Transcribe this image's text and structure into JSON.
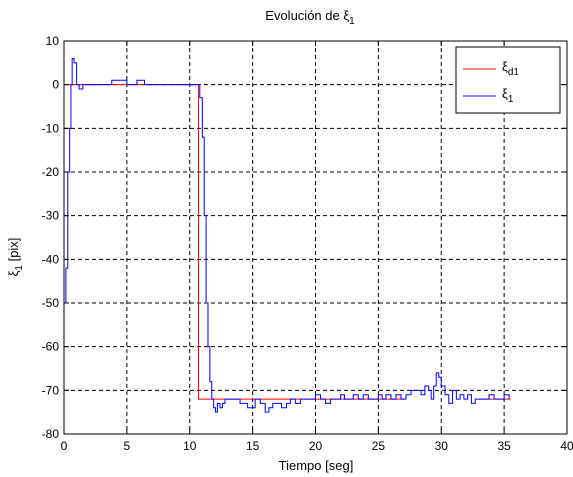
{
  "chart_data": {
    "type": "line",
    "title": {
      "text": "Evolución de ξ",
      "sub": "1"
    },
    "xlabel": "Tiempo [seg]",
    "ylabel": {
      "text": "ξ",
      "sub": "1",
      "suffix": " [pix]"
    },
    "xlim": [
      0,
      40
    ],
    "ylim": [
      -80,
      10
    ],
    "xticks": [
      0,
      5,
      10,
      15,
      20,
      25,
      30,
      35,
      40
    ],
    "yticks": [
      10,
      0,
      -10,
      -20,
      -30,
      -40,
      -50,
      -60,
      -70,
      -80
    ],
    "grid": true,
    "legend_position": "top-right",
    "series": [
      {
        "name": "ξd1",
        "name_base": "ξ",
        "name_sub": "d1",
        "color": "#ff0000",
        "step": false,
        "x": [
          0,
          10.7,
          10.7,
          27,
          27.5,
          32.5,
          33,
          35.5
        ],
        "y": [
          0,
          0,
          -72,
          -72,
          null,
          null,
          -72,
          -72
        ]
      },
      {
        "name": "ξ1",
        "name_base": "ξ",
        "name_sub": "1",
        "color": "#0000ff",
        "step": true,
        "x": [
          0,
          0.15,
          0.3,
          0.45,
          0.55,
          0.65,
          0.8,
          1.0,
          1.2,
          1.5,
          2.0,
          3.0,
          3.8,
          4.6,
          5.0,
          5.8,
          6.4,
          7.0,
          10.5,
          10.8,
          11.0,
          11.15,
          11.3,
          11.45,
          11.6,
          11.75,
          11.9,
          12.05,
          12.2,
          12.4,
          12.6,
          12.8,
          13.2,
          13.6,
          14.0,
          14.6,
          15.2,
          15.6,
          16.0,
          16.3,
          16.6,
          17.0,
          17.3,
          17.7,
          18.0,
          18.4,
          18.8,
          19.2,
          19.6,
          20.0,
          20.4,
          20.8,
          21.2,
          21.6,
          22.0,
          22.3,
          22.6,
          23.0,
          23.4,
          23.8,
          24.2,
          24.6,
          25.0,
          25.3,
          25.6,
          26.0,
          26.4,
          26.8,
          27.2,
          27.6,
          28.0,
          28.4,
          28.7,
          29.0,
          29.2,
          29.4,
          29.6,
          29.8,
          30.0,
          30.3,
          30.6,
          30.9,
          31.2,
          31.5,
          31.8,
          32.1,
          32.4,
          32.7,
          33.0,
          33.4,
          33.8,
          34.2,
          34.6,
          35.0,
          35.4
        ],
        "y": [
          -50,
          -42,
          -20,
          -10,
          0,
          6,
          5,
          0,
          -1,
          0,
          0,
          0,
          1,
          1,
          0,
          1,
          0,
          0,
          0,
          -3,
          -12,
          -30,
          -50,
          -60,
          -68,
          -72,
          -74,
          -75,
          -73,
          -74,
          -73,
          -72,
          -72,
          -72,
          -73,
          -74,
          -72,
          -73,
          -75,
          -74,
          -73,
          -73,
          -74,
          -73,
          -72,
          -73,
          -72,
          -72,
          -72,
          -71,
          -72,
          -73,
          -72,
          -72,
          -71,
          -72,
          -72,
          -71,
          -72,
          -71,
          -72,
          -72,
          -71,
          -72,
          -71,
          -72,
          -71,
          -72,
          -71,
          -70,
          -70,
          -71,
          -69,
          -70,
          -72,
          -69,
          -66,
          -67,
          -69,
          -71,
          -73,
          -70,
          -72,
          -71,
          -72,
          -71,
          -73,
          -72,
          -72,
          -72,
          -71,
          -72,
          -72,
          -71,
          -72
        ]
      }
    ]
  }
}
